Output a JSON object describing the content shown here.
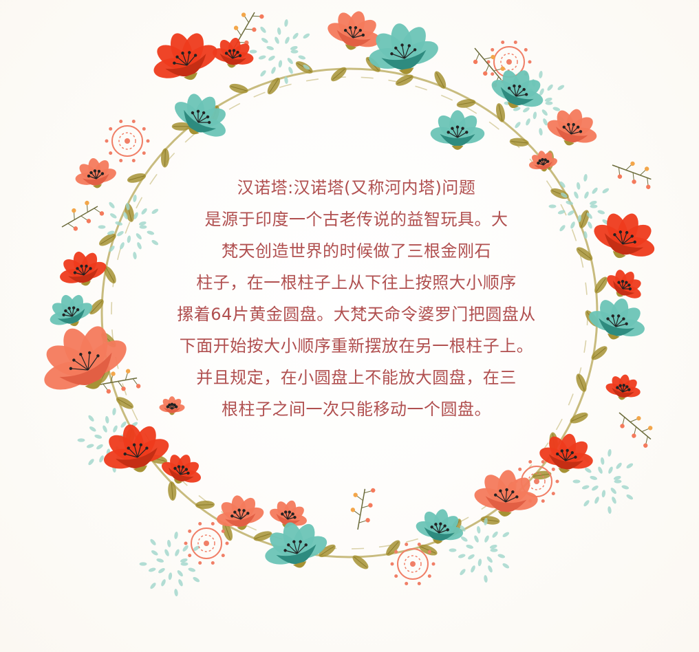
{
  "colors": {
    "text": "#b04f4f",
    "flower_red": "#ee3b1c",
    "flower_coral": "#f47a5c",
    "flower_teal": "#6cc4b6",
    "flower_teal_dark": "#2e8b7f",
    "stem": "#b1a04a",
    "leaf": "#a69234",
    "spray_teal": "#9fd6cb",
    "lace_coral": "#f07f67"
  },
  "illustration": {
    "name": "floral-wreath",
    "icons": [
      "red-flower",
      "coral-flower",
      "teal-flower",
      "leaf",
      "berry-sprig",
      "paisley-lace",
      "dot-spray"
    ]
  },
  "text_block": {
    "lines": [
      "汉诺塔:汉诺塔(又称河内塔)问题",
      "是源于印度一个古老传说的益智玩具。大",
      "梵天创造世界的时候做了三根金刚石",
      "柱子，在一根柱子上从下往上按照大小顺序",
      "摞着64片黄金圆盘。大梵天命令婆罗门把圆盘从",
      "下面开始按大小顺序重新摆放在另一根柱子上。",
      "并且规定，在小圆盘上不能放大圆盘，在三",
      "根柱子之间一次只能移动一个圆盘。"
    ]
  }
}
